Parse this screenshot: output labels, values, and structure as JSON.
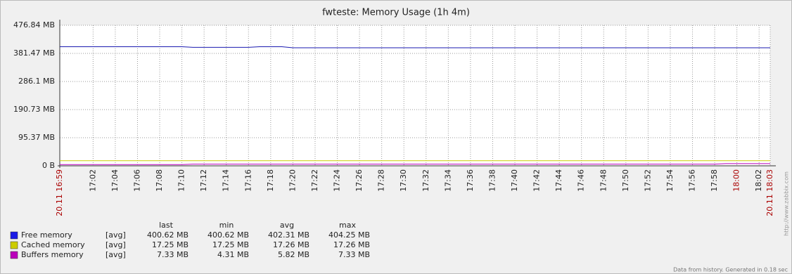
{
  "chart_data": {
    "type": "line",
    "title": "fwteste: Memory Usage  (1h 4m)",
    "x": [
      "16:59",
      "17:10",
      "17:11",
      "17:16",
      "17:17",
      "17:19",
      "17:20",
      "17:58",
      "17:59",
      "18:03"
    ],
    "xlim": [
      "16:59",
      "18:03"
    ],
    "xticks": [
      {
        "value": "16:59",
        "label": "20.11 16:59",
        "highlight": true
      },
      "17:02",
      "17:04",
      "17:06",
      "17:08",
      "17:10",
      "17:12",
      "17:14",
      "17:16",
      "17:18",
      "17:20",
      "17:22",
      "17:24",
      "17:26",
      "17:28",
      "17:30",
      "17:32",
      "17:34",
      "17:36",
      "17:38",
      "17:40",
      "17:42",
      "17:44",
      "17:46",
      "17:48",
      "17:50",
      "17:52",
      "17:54",
      "17:56",
      "17:58",
      {
        "value": "18:00",
        "label": "18:00",
        "highlight": true
      },
      "18:02",
      {
        "value": "18:03",
        "label": "20.11 18:03",
        "highlight": true
      }
    ],
    "highlight_color": "#aa0000",
    "ylim": [
      0,
      476.84
    ],
    "yticks": [
      {
        "value": 0,
        "label": "0 B"
      },
      {
        "value": 95.37,
        "label": "95.37 MB"
      },
      {
        "value": 190.73,
        "label": "190.73 MB"
      },
      {
        "value": 286.1,
        "label": "286.1 MB"
      },
      {
        "value": 381.47,
        "label": "381.47 MB"
      },
      {
        "value": 476.84,
        "label": "476.84 MB"
      }
    ],
    "grid": true,
    "stat_headers": [
      "last",
      "min",
      "avg",
      "max"
    ],
    "series": [
      {
        "name": "Free memory",
        "color": "#1a1ab0",
        "legend_color": "#1a1ae6",
        "func": "[avg]",
        "values": [
          404.25,
          404.25,
          402.0,
          402.0,
          404.0,
          404.0,
          400.62,
          400.62,
          400.62,
          400.62
        ],
        "stats": [
          {
            "value": 400.62,
            "label": "400.62 MB"
          },
          {
            "value": 400.62,
            "label": "400.62 MB"
          },
          {
            "value": 402.31,
            "label": "402.31 MB"
          },
          {
            "value": 404.25,
            "label": "404.25 MB"
          }
        ]
      },
      {
        "name": "Cached memory",
        "color": "#cccc00",
        "legend_color": "#cccc00",
        "func": "[avg]",
        "values": [
          17.26,
          17.26,
          17.26,
          17.26,
          17.26,
          17.26,
          17.26,
          17.26,
          17.26,
          17.25
        ],
        "stats": [
          {
            "value": 17.25,
            "label": "17.25 MB"
          },
          {
            "value": 17.25,
            "label": "17.25 MB"
          },
          {
            "value": 17.26,
            "label": "17.26 MB"
          },
          {
            "value": 17.26,
            "label": "17.26 MB"
          }
        ]
      },
      {
        "name": "Buffers memory",
        "color": "#bb00bb",
        "legend_color": "#bb00bb",
        "func": "[avg]",
        "values": [
          4.31,
          4.31,
          5.6,
          5.6,
          5.6,
          5.6,
          5.6,
          5.6,
          7.33,
          7.33
        ],
        "stats": [
          {
            "value": 7.33,
            "label": "7.33 MB"
          },
          {
            "value": 4.31,
            "label": "4.31 MB"
          },
          {
            "value": 5.82,
            "label": "5.82 MB"
          },
          {
            "value": 7.33,
            "label": "7.33 MB"
          }
        ]
      }
    ],
    "footer": "Data from history. Generated in 0.18 sec",
    "watermark": "http://www.zabbix.com"
  }
}
